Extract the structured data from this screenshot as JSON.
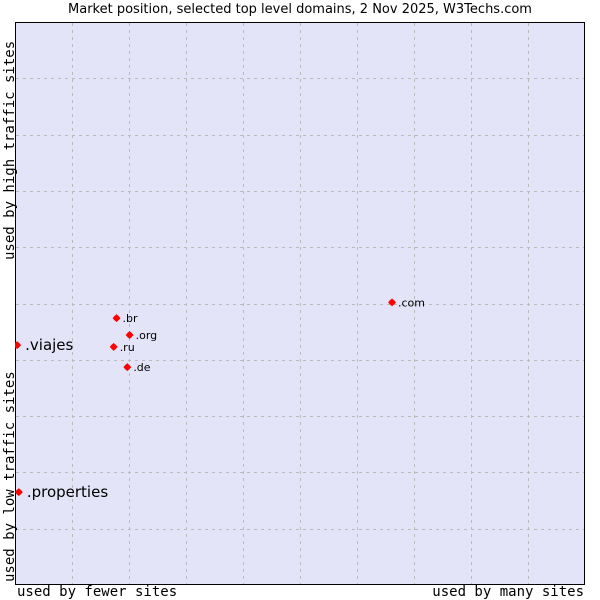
{
  "chart_data": {
    "type": "scatter",
    "title": "Market position, selected top level domains, 2 Nov 2025, W3Techs.com",
    "xlabel_left": "used by fewer sites",
    "xlabel_right": "used by many sites",
    "ylabel_top": "used by high traffic sites",
    "ylabel_bottom": "used by low traffic sites",
    "grid": true,
    "grid_divisions": {
      "x": 10,
      "y": 10
    },
    "axis_ticks_labeled": false,
    "plot_background": "#e3e4f8",
    "marker_color": "#ff0000",
    "points": [
      {
        "label": ".com",
        "x": 0.662,
        "y": 0.502,
        "highlight": false
      },
      {
        "label": ".br",
        "x": 0.177,
        "y": 0.474,
        "highlight": false
      },
      {
        "label": ".org",
        "x": 0.2,
        "y": 0.444,
        "highlight": false
      },
      {
        "label": ".ru",
        "x": 0.172,
        "y": 0.423,
        "highlight": false
      },
      {
        "label": ".de",
        "x": 0.196,
        "y": 0.387,
        "highlight": false
      },
      {
        "label": ".viajes",
        "x": 0.002,
        "y": 0.426,
        "highlight": true
      },
      {
        "label": ".properties",
        "x": 0.005,
        "y": 0.165,
        "highlight": true
      }
    ]
  }
}
